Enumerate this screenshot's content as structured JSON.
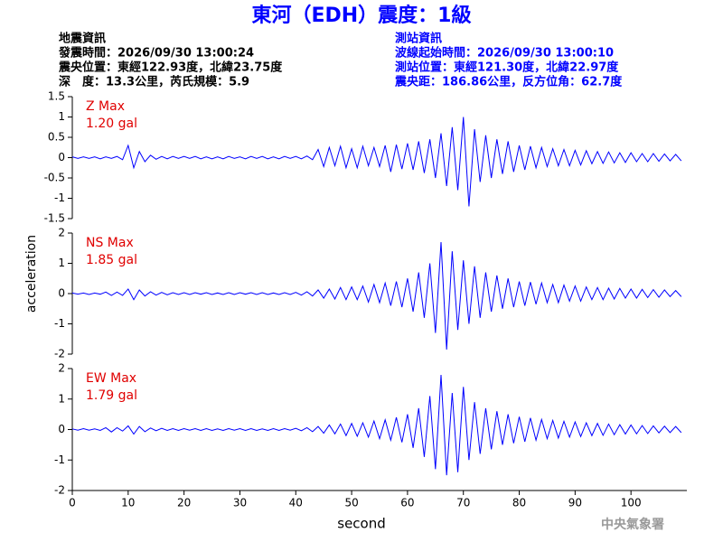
{
  "title": "東河（EDH）震度：1級",
  "info_left": [
    "地震資訊",
    "發震時間：2026/09/30 13:00:24",
    "震央位置：東經122.93度，北緯23.75度",
    "深　度：13.3公里，芮氏規模：5.9"
  ],
  "info_right": [
    "測站資訊",
    "波線起始時間：2026/09/30 13:00:10",
    "測站位置：東經121.30度，北緯22.97度",
    "震央距：186.86公里，反方位角：62.7度"
  ],
  "ylabel": "acceleration",
  "xlabel": "second",
  "footer": "中央氣象署",
  "chart_data": [
    {
      "type": "line",
      "annotations": [
        "Z Max",
        "1.20 gal"
      ],
      "color": "#0000ff",
      "xlim": [
        0,
        110
      ],
      "ylim": [
        -1.5,
        1.5
      ],
      "yticks": [
        -1.5,
        -1,
        -0.5,
        0,
        0.5,
        1,
        1.5
      ],
      "x": [
        0,
        1,
        2,
        3,
        4,
        5,
        6,
        7,
        8,
        9,
        10,
        11,
        12,
        13,
        14,
        15,
        16,
        17,
        18,
        19,
        20,
        21,
        22,
        23,
        24,
        25,
        26,
        27,
        28,
        29,
        30,
        31,
        32,
        33,
        34,
        35,
        36,
        37,
        38,
        39,
        40,
        41,
        42,
        43,
        44,
        45,
        46,
        47,
        48,
        49,
        50,
        51,
        52,
        53,
        54,
        55,
        56,
        57,
        58,
        59,
        60,
        61,
        62,
        63,
        64,
        65,
        66,
        67,
        68,
        69,
        70,
        71,
        72,
        73,
        74,
        75,
        76,
        77,
        78,
        79,
        80,
        81,
        82,
        83,
        84,
        85,
        86,
        87,
        88,
        89,
        90,
        91,
        92,
        93,
        94,
        95,
        96,
        97,
        98,
        99,
        100,
        101,
        102,
        103,
        104,
        105,
        106,
        107,
        108,
        109
      ],
      "values": [
        0.02,
        -0.02,
        0.02,
        -0.02,
        0.02,
        -0.03,
        0.02,
        -0.02,
        0.03,
        -0.05,
        0.3,
        -0.25,
        0.15,
        -0.1,
        0.06,
        -0.04,
        0.03,
        -0.03,
        0.03,
        -0.02,
        0.03,
        -0.02,
        0.03,
        -0.03,
        0.02,
        -0.03,
        0.02,
        -0.03,
        0.03,
        -0.02,
        0.02,
        -0.03,
        0.03,
        -0.02,
        0.03,
        -0.03,
        0.02,
        -0.03,
        0.03,
        -0.02,
        0.03,
        -0.03,
        0.04,
        -0.05,
        0.2,
        -0.22,
        0.25,
        -0.2,
        0.28,
        -0.25,
        0.22,
        -0.25,
        0.28,
        -0.2,
        0.25,
        -0.22,
        0.3,
        -0.35,
        0.32,
        -0.28,
        0.35,
        -0.3,
        0.4,
        -0.38,
        0.45,
        -0.5,
        0.6,
        -0.7,
        0.75,
        -0.8,
        1.0,
        -1.2,
        0.7,
        -0.6,
        0.55,
        -0.5,
        0.45,
        -0.4,
        0.4,
        -0.35,
        0.3,
        -0.3,
        0.28,
        -0.25,
        0.25,
        -0.22,
        0.22,
        -0.2,
        0.2,
        -0.2,
        0.18,
        -0.18,
        0.17,
        -0.15,
        0.15,
        -0.14,
        0.14,
        -0.13,
        0.12,
        -0.12,
        0.12,
        -0.1,
        0.1,
        -0.1,
        0.1,
        -0.09,
        0.09,
        -0.08,
        0.08,
        -0.08
      ]
    },
    {
      "type": "line",
      "annotations": [
        "NS Max",
        "1.85 gal"
      ],
      "color": "#0000ff",
      "xlim": [
        0,
        110
      ],
      "ylim": [
        -2,
        2
      ],
      "yticks": [
        -2,
        -1,
        0,
        1,
        2
      ],
      "x": [
        0,
        1,
        2,
        3,
        4,
        5,
        6,
        7,
        8,
        9,
        10,
        11,
        12,
        13,
        14,
        15,
        16,
        17,
        18,
        19,
        20,
        21,
        22,
        23,
        24,
        25,
        26,
        27,
        28,
        29,
        30,
        31,
        32,
        33,
        34,
        35,
        36,
        37,
        38,
        39,
        40,
        41,
        42,
        43,
        44,
        45,
        46,
        47,
        48,
        49,
        50,
        51,
        52,
        53,
        54,
        55,
        56,
        57,
        58,
        59,
        60,
        61,
        62,
        63,
        64,
        65,
        66,
        67,
        68,
        69,
        70,
        71,
        72,
        73,
        74,
        75,
        76,
        77,
        78,
        79,
        80,
        81,
        82,
        83,
        84,
        85,
        86,
        87,
        88,
        89,
        90,
        91,
        92,
        93,
        94,
        95,
        96,
        97,
        98,
        99,
        100,
        101,
        102,
        103,
        104,
        105,
        106,
        107,
        108,
        109
      ],
      "values": [
        0.02,
        -0.02,
        0.02,
        -0.03,
        0.02,
        -0.02,
        0.05,
        -0.06,
        0.05,
        -0.06,
        0.15,
        -0.2,
        0.12,
        -0.08,
        0.06,
        -0.05,
        0.04,
        -0.04,
        0.03,
        -0.03,
        0.03,
        -0.03,
        0.03,
        -0.02,
        0.03,
        -0.03,
        0.02,
        -0.03,
        0.03,
        -0.03,
        0.03,
        -0.02,
        0.03,
        -0.03,
        0.03,
        -0.03,
        0.02,
        -0.03,
        0.03,
        -0.03,
        0.04,
        -0.05,
        0.06,
        -0.08,
        0.12,
        -0.15,
        0.15,
        -0.18,
        0.2,
        -0.2,
        0.22,
        -0.2,
        0.25,
        -0.28,
        0.3,
        -0.3,
        0.35,
        -0.4,
        0.4,
        -0.45,
        0.5,
        -0.6,
        0.7,
        -0.8,
        1.0,
        -1.3,
        1.7,
        -1.85,
        1.4,
        -1.2,
        1.1,
        -1.0,
        0.9,
        -0.8,
        0.7,
        -0.6,
        0.6,
        -0.5,
        0.5,
        -0.45,
        0.4,
        -0.4,
        0.38,
        -0.35,
        0.35,
        -0.3,
        0.3,
        -0.3,
        0.28,
        -0.25,
        0.25,
        -0.25,
        0.22,
        -0.2,
        0.2,
        -0.2,
        0.18,
        -0.18,
        0.17,
        -0.15,
        0.15,
        -0.15,
        0.14,
        -0.13,
        0.13,
        -0.12,
        0.12,
        -0.1,
        0.1,
        -0.1
      ]
    },
    {
      "type": "line",
      "annotations": [
        "EW Max",
        "1.79 gal"
      ],
      "color": "#0000ff",
      "xlim": [
        0,
        110
      ],
      "ylim": [
        -2,
        2
      ],
      "yticks": [
        -2,
        -1,
        0,
        1,
        2
      ],
      "xticks": [
        0,
        10,
        20,
        30,
        40,
        50,
        60,
        70,
        80,
        90,
        100
      ],
      "x": [
        0,
        1,
        2,
        3,
        4,
        5,
        6,
        7,
        8,
        9,
        10,
        11,
        12,
        13,
        14,
        15,
        16,
        17,
        18,
        19,
        20,
        21,
        22,
        23,
        24,
        25,
        26,
        27,
        28,
        29,
        30,
        31,
        32,
        33,
        34,
        35,
        36,
        37,
        38,
        39,
        40,
        41,
        42,
        43,
        44,
        45,
        46,
        47,
        48,
        49,
        50,
        51,
        52,
        53,
        54,
        55,
        56,
        57,
        58,
        59,
        60,
        61,
        62,
        63,
        64,
        65,
        66,
        67,
        68,
        69,
        70,
        71,
        72,
        73,
        74,
        75,
        76,
        77,
        78,
        79,
        80,
        81,
        82,
        83,
        84,
        85,
        86,
        87,
        88,
        89,
        90,
        91,
        92,
        93,
        94,
        95,
        96,
        97,
        98,
        99,
        100,
        101,
        102,
        103,
        104,
        105,
        106,
        107,
        108,
        109
      ],
      "values": [
        0.02,
        -0.02,
        0.03,
        -0.02,
        0.02,
        -0.03,
        0.06,
        -0.08,
        0.06,
        -0.05,
        0.12,
        -0.15,
        0.1,
        -0.07,
        0.05,
        -0.04,
        0.04,
        -0.03,
        0.03,
        -0.03,
        0.03,
        -0.02,
        0.03,
        -0.03,
        0.03,
        -0.03,
        0.02,
        -0.03,
        0.03,
        -0.02,
        0.03,
        -0.03,
        0.03,
        -0.03,
        0.02,
        -0.03,
        0.03,
        -0.03,
        0.03,
        -0.02,
        0.04,
        -0.04,
        0.06,
        -0.07,
        0.1,
        -0.12,
        0.15,
        -0.14,
        0.18,
        -0.2,
        0.2,
        -0.22,
        0.22,
        -0.25,
        0.28,
        -0.3,
        0.32,
        -0.35,
        0.4,
        -0.42,
        0.5,
        -0.6,
        0.7,
        -0.9,
        1.1,
        -1.3,
        1.79,
        -1.5,
        1.2,
        -1.4,
        1.4,
        -1.0,
        0.9,
        -0.8,
        0.7,
        -0.65,
        0.6,
        -0.5,
        0.5,
        -0.45,
        0.42,
        -0.4,
        0.38,
        -0.35,
        0.33,
        -0.3,
        0.3,
        -0.28,
        0.27,
        -0.25,
        0.25,
        -0.23,
        0.22,
        -0.2,
        0.2,
        -0.19,
        0.18,
        -0.17,
        0.16,
        -0.15,
        0.15,
        -0.14,
        0.13,
        -0.13,
        0.12,
        -0.11,
        0.11,
        -0.1,
        0.1,
        -0.1
      ]
    }
  ]
}
